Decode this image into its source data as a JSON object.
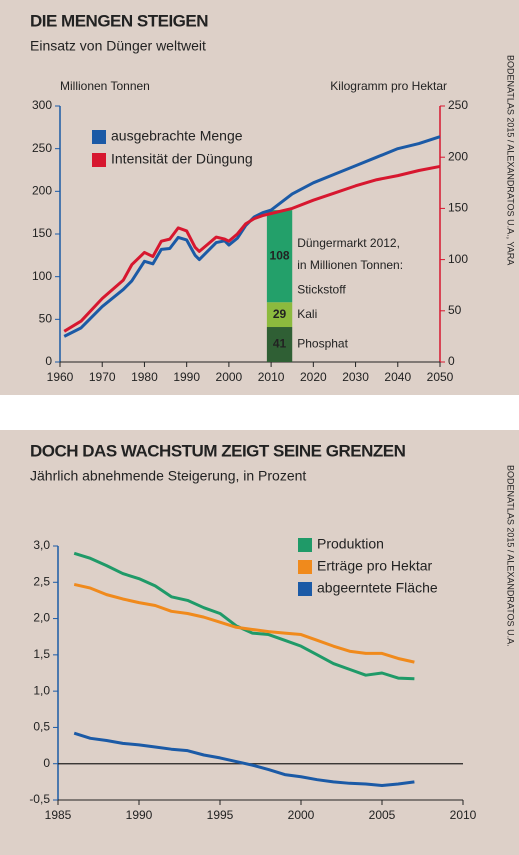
{
  "chart_data": [
    {
      "type": "line",
      "title": "DIE MENGEN STEIGEN",
      "subtitle": "Einsatz von Dünger weltweit",
      "ylabel": "Millionen Tonnen",
      "y2label": "Kilogramm pro Hektar",
      "source": "BODENATLAS 2015 / ALEXANDRATOS U.A., YARA",
      "x": [
        1961,
        1965,
        1970,
        1975,
        1977,
        1980,
        1982,
        1984,
        1986,
        1988,
        1990,
        1992,
        1993,
        1995,
        1997,
        1999,
        2000,
        2002,
        2004,
        2006,
        2008,
        2010,
        2015,
        2020,
        2025,
        2030,
        2035,
        2040,
        2045,
        2050
      ],
      "xlim": [
        1960,
        2050
      ],
      "xticks": [
        1960,
        1970,
        1980,
        1990,
        2000,
        2010,
        2020,
        2030,
        2040,
        2050
      ],
      "ylim": [
        0,
        300
      ],
      "yticks": [
        0,
        50,
        100,
        150,
        200,
        250,
        300
      ],
      "y2lim": [
        0,
        250
      ],
      "y2ticks": [
        0,
        50,
        100,
        150,
        200,
        250
      ],
      "series": [
        {
          "name": "ausgebrachte Menge",
          "color": "#1b5aa6",
          "values": [
            30,
            40,
            65,
            85,
            95,
            118,
            115,
            132,
            133,
            146,
            143,
            125,
            120,
            130,
            140,
            142,
            137,
            145,
            160,
            170,
            175,
            178,
            197,
            210,
            220,
            230,
            240,
            250,
            256,
            264
          ]
        },
        {
          "name": "Intensität der Düngung",
          "color": "#d7172f",
          "axis": "y2",
          "values": [
            30,
            40,
            62,
            80,
            95,
            107,
            103,
            118,
            120,
            131,
            128,
            112,
            108,
            115,
            122,
            120,
            118,
            125,
            135,
            140,
            143,
            145,
            150,
            158,
            165,
            172,
            178,
            182,
            187,
            191
          ]
        }
      ],
      "stack": {
        "annotation": [
          "Düngermarkt 2012,",
          "in Millionen Tonnen:"
        ],
        "segments": [
          {
            "name": "Phosphat",
            "value": 41,
            "color": "#2f5f34"
          },
          {
            "name": "Kali",
            "value": 29,
            "color": "#8cba3e"
          },
          {
            "name": "Stickstoff",
            "value": 108,
            "color": "#23a06a"
          }
        ]
      }
    },
    {
      "type": "line",
      "title": "DOCH DAS WACHSTUM ZEIGT SEINE GRENZEN",
      "subtitle": "Jährlich abnehmende Steigerung, in Prozent",
      "source": "BODENATLAS 2015 / ALEXANDRATOS U.A.",
      "x": [
        1986,
        1987,
        1988,
        1989,
        1990,
        1991,
        1992,
        1993,
        1994,
        1995,
        1996,
        1997,
        1998,
        1999,
        2000,
        2001,
        2002,
        2003,
        2004,
        2005,
        2006,
        2007
      ],
      "xlim": [
        1985,
        2010
      ],
      "xticks": [
        1985,
        1990,
        1995,
        2000,
        2005,
        2010
      ],
      "ylim": [
        -0.5,
        3
      ],
      "yticks": [
        {
          "value": -0.5,
          "label": "-0,5"
        },
        0,
        {
          "value": 0.5,
          "label": "0,5"
        },
        {
          "value": 1,
          "label": "1,0"
        },
        {
          "value": 1.5,
          "label": "1,5"
        },
        {
          "value": 2,
          "label": "2,0"
        },
        {
          "value": 2.5,
          "label": "2,5"
        },
        {
          "value": 3,
          "label": "3,0"
        }
      ],
      "series": [
        {
          "name": "Produktion",
          "color": "#1f9a68",
          "values": [
            2.9,
            2.83,
            2.73,
            2.62,
            2.55,
            2.45,
            2.3,
            2.25,
            2.15,
            2.07,
            1.9,
            1.8,
            1.78,
            1.7,
            1.62,
            1.5,
            1.38,
            1.3,
            1.22,
            1.25,
            1.18,
            1.17
          ]
        },
        {
          "name": "Erträge pro Hektar",
          "color": "#f08a1c",
          "values": [
            2.47,
            2.42,
            2.33,
            2.27,
            2.22,
            2.18,
            2.1,
            2.07,
            2.02,
            1.95,
            1.88,
            1.85,
            1.82,
            1.8,
            1.78,
            1.7,
            1.62,
            1.55,
            1.52,
            1.52,
            1.45,
            1.4
          ]
        },
        {
          "name": "abgeerntete Fläche",
          "color": "#1b5aa6",
          "values": [
            0.42,
            0.35,
            0.32,
            0.28,
            0.26,
            0.23,
            0.2,
            0.18,
            0.12,
            0.08,
            0.03,
            -0.02,
            -0.08,
            -0.15,
            -0.18,
            -0.22,
            -0.25,
            -0.27,
            -0.28,
            -0.3,
            -0.28,
            -0.25
          ]
        }
      ]
    }
  ]
}
